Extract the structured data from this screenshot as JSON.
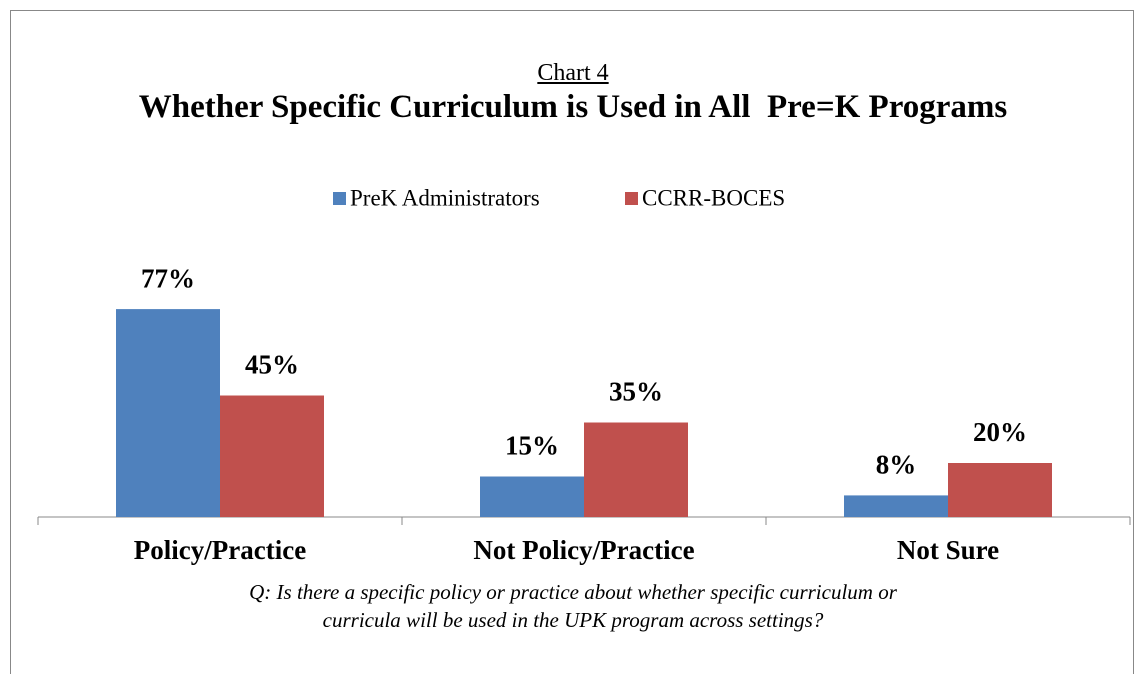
{
  "chart_data": {
    "type": "bar",
    "supertitle": "Chart 4",
    "title": "Whether Specific Curriculum is Used in All  Pre=K Programs",
    "note": "Q: Is there a specific policy or practice about whether specific curriculum or curricula will be used in the UPK program across settings?",
    "categories": [
      "Policy/Practice",
      "Not Policy/Practice",
      "Not Sure"
    ],
    "series": [
      {
        "name": "PreK Administrators",
        "color": "#4f81bd",
        "values": [
          77,
          15,
          8
        ],
        "value_labels": [
          "77%",
          "15%",
          "8%"
        ]
      },
      {
        "name": "CCRR-BOCES",
        "color": "#c0504d",
        "values": [
          45,
          35,
          20
        ],
        "value_labels": [
          "45%",
          "35%",
          "20%"
        ]
      }
    ],
    "ylim": [
      0,
      90
    ],
    "legend": "top"
  }
}
